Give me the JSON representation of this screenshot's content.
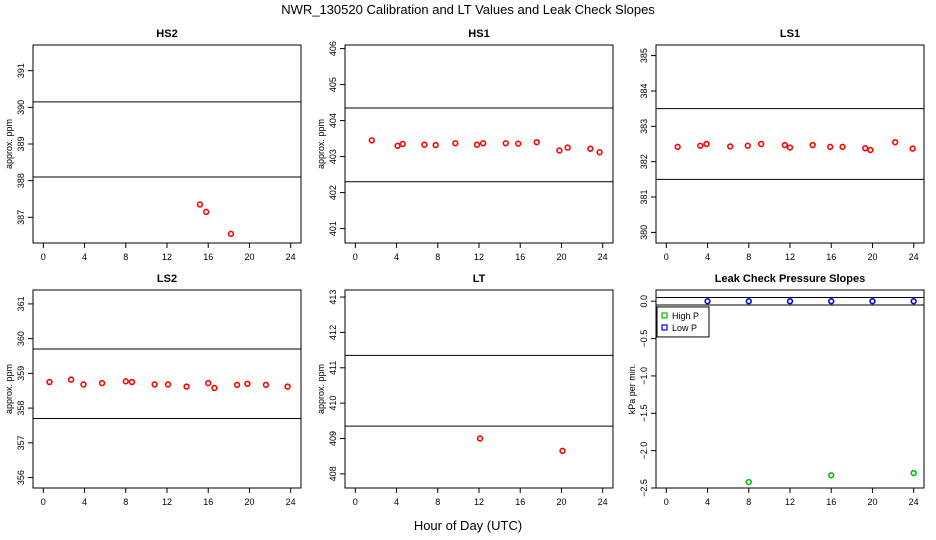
{
  "figure": {
    "title": "NWR_130520  Calibration and LT Values and Leak Check Slopes",
    "xlabel": "Hour of Day (UTC)"
  },
  "colors": {
    "points": "#ff0000",
    "high_p": "#00c000",
    "low_p": "#0000ff",
    "lines": "#000000"
  },
  "chart_data": [
    {
      "type": "scatter",
      "title": "HS2",
      "xlabel": "",
      "ylabel": "approx. ppm",
      "xlim": [
        -1,
        25
      ],
      "ylim": [
        386.3,
        391.7
      ],
      "xticks": [
        0,
        4,
        8,
        12,
        16,
        20,
        24
      ],
      "yticks": [
        387,
        388,
        389,
        390,
        391
      ],
      "hlines": [
        388.1,
        390.15
      ],
      "series": [
        {
          "points": [
            [
              15.2,
              387.35
            ],
            [
              15.8,
              387.15
            ],
            [
              18.2,
              386.55
            ]
          ]
        }
      ]
    },
    {
      "type": "scatter",
      "title": "HS1",
      "xlabel": "",
      "ylabel": "approx. ppm",
      "xlim": [
        -1,
        25
      ],
      "ylim": [
        400.6,
        406.1
      ],
      "xticks": [
        0,
        4,
        8,
        12,
        16,
        20,
        24
      ],
      "yticks": [
        401,
        402,
        403,
        404,
        405,
        406
      ],
      "hlines": [
        402.3,
        404.35
      ],
      "series": [
        {
          "points": [
            [
              1.6,
              403.45
            ],
            [
              4.1,
              403.3
            ],
            [
              4.6,
              403.35
            ],
            [
              6.7,
              403.33
            ],
            [
              7.8,
              403.32
            ],
            [
              9.7,
              403.37
            ],
            [
              11.8,
              403.33
            ],
            [
              12.4,
              403.37
            ],
            [
              14.6,
              403.37
            ],
            [
              15.8,
              403.36
            ],
            [
              17.6,
              403.4
            ],
            [
              19.8,
              403.17
            ],
            [
              20.6,
              403.25
            ],
            [
              22.8,
              403.22
            ],
            [
              23.7,
              403.12
            ]
          ]
        }
      ]
    },
    {
      "type": "scatter",
      "title": "LS1",
      "xlabel": "",
      "ylabel": "",
      "xlim": [
        -1,
        25
      ],
      "ylim": [
        379.7,
        385.3
      ],
      "xticks": [
        0,
        4,
        8,
        12,
        16,
        20,
        24
      ],
      "yticks": [
        380,
        381,
        382,
        383,
        384,
        385
      ],
      "hlines": [
        381.5,
        383.5
      ],
      "series": [
        {
          "points": [
            [
              1.1,
              382.42
            ],
            [
              3.3,
              382.45
            ],
            [
              3.9,
              382.5
            ],
            [
              6.2,
              382.43
            ],
            [
              7.9,
              382.45
            ],
            [
              9.2,
              382.5
            ],
            [
              11.5,
              382.47
            ],
            [
              12.0,
              382.4
            ],
            [
              14.2,
              382.47
            ],
            [
              15.9,
              382.42
            ],
            [
              17.1,
              382.42
            ],
            [
              19.3,
              382.38
            ],
            [
              19.8,
              382.33
            ],
            [
              22.2,
              382.55
            ],
            [
              23.9,
              382.37
            ]
          ]
        }
      ]
    },
    {
      "type": "scatter",
      "title": "LS2",
      "xlabel": "",
      "ylabel": "approx. ppm",
      "xlim": [
        -1,
        25
      ],
      "ylim": [
        355.7,
        361.4
      ],
      "xticks": [
        0,
        4,
        8,
        12,
        16,
        20,
        24
      ],
      "yticks": [
        356,
        357,
        358,
        359,
        360,
        361
      ],
      "hlines": [
        357.7,
        359.7
      ],
      "series": [
        {
          "points": [
            [
              0.6,
              358.75
            ],
            [
              2.7,
              358.82
            ],
            [
              3.9,
              358.68
            ],
            [
              5.7,
              358.72
            ],
            [
              8.0,
              358.77
            ],
            [
              8.6,
              358.75
            ],
            [
              10.8,
              358.68
            ],
            [
              12.1,
              358.68
            ],
            [
              13.9,
              358.62
            ],
            [
              16.0,
              358.72
            ],
            [
              16.6,
              358.58
            ],
            [
              18.8,
              358.67
            ],
            [
              19.8,
              358.7
            ],
            [
              21.6,
              358.67
            ],
            [
              23.7,
              358.62
            ]
          ]
        }
      ]
    },
    {
      "type": "scatter",
      "title": "LT",
      "xlabel": "",
      "ylabel": "approx. ppm",
      "xlim": [
        -1,
        25
      ],
      "ylim": [
        407.6,
        413.2
      ],
      "xticks": [
        0,
        4,
        8,
        12,
        16,
        20,
        24
      ],
      "yticks": [
        408,
        409,
        410,
        411,
        412,
        413
      ],
      "hlines": [
        409.35,
        411.35
      ],
      "series": [
        {
          "points": [
            [
              12.1,
              409.0
            ],
            [
              20.1,
              408.65
            ]
          ]
        }
      ]
    },
    {
      "type": "scatter",
      "title": "Leak Check Pressure Slopes",
      "xlabel": "",
      "ylabel": "kPa per min.",
      "xlim": [
        -1,
        25
      ],
      "ylim": [
        -2.5,
        0.15
      ],
      "xticks": [
        0,
        4,
        8,
        12,
        16,
        20,
        24
      ],
      "yticks": [
        0.0,
        -0.5,
        -1.0,
        -1.5,
        -2.0,
        -2.5
      ],
      "ytick_labels": [
        "0.0",
        "−0.5",
        "−1.0",
        "−1.5",
        "−2.0",
        "−2.5"
      ],
      "hlines": [
        -0.05,
        0.05
      ],
      "legend": {
        "placement": "top-left"
      },
      "series": [
        {
          "name": "High P",
          "color": "#00c000",
          "points": [
            [
              8,
              -2.42
            ],
            [
              16,
              -2.33
            ],
            [
              24,
              -2.3
            ]
          ]
        },
        {
          "name": "Low P",
          "color": "#0000ff",
          "points": [
            [
              4,
              0.0
            ],
            [
              8,
              0.0
            ],
            [
              12,
              0.0
            ],
            [
              16,
              0.0
            ],
            [
              20,
              0.0
            ],
            [
              24,
              0.0
            ]
          ]
        }
      ]
    }
  ]
}
